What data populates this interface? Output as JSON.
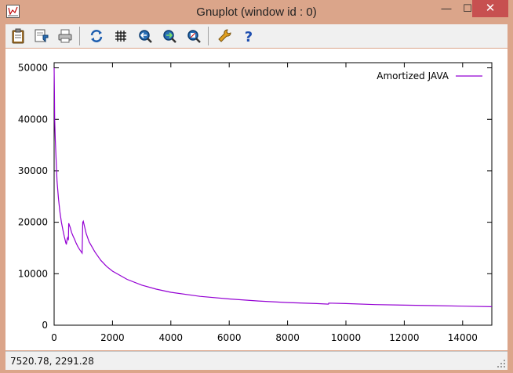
{
  "window": {
    "title": "Gnuplot (window id : 0)",
    "minimize_glyph": "—",
    "maximize_glyph": "☐",
    "close_glyph": "✕"
  },
  "toolbar": {
    "buttons": [
      {
        "name": "copy-to-clipboard",
        "icon": "clipboard-icon"
      },
      {
        "name": "save",
        "icon": "save-icon"
      },
      {
        "name": "print",
        "icon": "printer-icon"
      },
      {
        "name": "replot",
        "icon": "refresh-icon"
      },
      {
        "name": "toggle-grid",
        "icon": "grid-icon"
      },
      {
        "name": "zoom-previous",
        "icon": "zoom-previous-icon"
      },
      {
        "name": "zoom-next",
        "icon": "zoom-next-icon"
      },
      {
        "name": "autoscale",
        "icon": "autoscale-icon"
      },
      {
        "name": "options",
        "icon": "wrench-icon"
      },
      {
        "name": "help",
        "icon": "help-icon"
      }
    ]
  },
  "status": {
    "coordinates": "7520.78,  2291.28"
  },
  "colors": {
    "series": "#9400d3",
    "close": "#c75050",
    "titlebar": "#dba58a"
  },
  "chart_data": {
    "type": "line",
    "title": "",
    "xlabel": "",
    "ylabel": "",
    "xlim": [
      0,
      15000
    ],
    "ylim": [
      0,
      51000
    ],
    "xticks": [
      0,
      2000,
      4000,
      6000,
      8000,
      10000,
      12000,
      14000
    ],
    "yticks": [
      0,
      10000,
      20000,
      30000,
      40000,
      50000
    ],
    "xtick_labels": [
      "0",
      "2000",
      "4000",
      "6000",
      "8000",
      "10000",
      "12000",
      "14000"
    ],
    "ytick_labels": [
      "0",
      "10000",
      "20000",
      "30000",
      "40000",
      "50000"
    ],
    "grid": false,
    "legend": "top-right",
    "series": [
      {
        "name": "Amortized JAVA",
        "x": [
          1,
          10,
          20,
          40,
          70,
          100,
          150,
          200,
          250,
          300,
          350,
          400,
          420,
          450,
          480,
          490,
          500,
          550,
          600,
          650,
          700,
          750,
          800,
          850,
          900,
          950,
          960,
          980,
          1000,
          1100,
          1200,
          1400,
          1600,
          1800,
          2000,
          2500,
          3000,
          3500,
          4000,
          5000,
          6000,
          7000,
          8000,
          9000,
          9400,
          9410,
          10000,
          11000,
          12000,
          13000,
          14000,
          15000
        ],
        "y": [
          50000,
          45000,
          40000,
          36000,
          32000,
          28000,
          24500,
          22000,
          20000,
          18500,
          17200,
          16000,
          15700,
          16800,
          17200,
          16500,
          19800,
          19000,
          18000,
          17300,
          16700,
          16000,
          15400,
          14900,
          14500,
          14100,
          14000,
          20000,
          20200,
          17800,
          16200,
          14200,
          12600,
          11400,
          10500,
          8900,
          7800,
          7000,
          6400,
          5600,
          5100,
          4700,
          4400,
          4200,
          4100,
          4300,
          4200,
          4000,
          3900,
          3800,
          3700,
          3600
        ]
      }
    ]
  }
}
